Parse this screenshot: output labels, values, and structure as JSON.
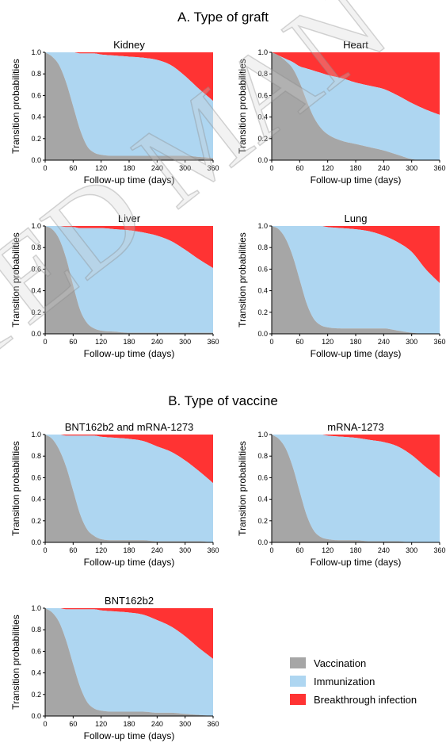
{
  "sections": {
    "a_title": "A. Type of graft",
    "b_title": "B. Type of vaccine"
  },
  "watermark": {
    "text": "ACCEPTED MANUSCRIPT",
    "visible_fragment": "TED MAN"
  },
  "colors": {
    "vaccination": "#a6a6a6",
    "immunization": "#aed6f1",
    "breakthrough": "#ff3333",
    "watermark": "#d0d0d0"
  },
  "legend": {
    "items": [
      {
        "label": "Vaccination",
        "color": "#a6a6a6"
      },
      {
        "label": "Immunization",
        "color": "#aed6f1"
      },
      {
        "label": "Breakthrough infection",
        "color": "#ff3333"
      }
    ]
  },
  "chart_data": [
    {
      "type": "area",
      "title": "Kidney",
      "xlabel": "Follow-up time (days)",
      "ylabel": "Transition probabilities",
      "xlim": [
        0,
        360
      ],
      "ylim": [
        0,
        1
      ],
      "xticks": [
        0,
        60,
        120,
        180,
        240,
        300,
        360
      ],
      "yticks": [
        0.0,
        0.2,
        0.4,
        0.6,
        0.8,
        1.0
      ],
      "x": [
        0,
        15,
        30,
        45,
        60,
        75,
        90,
        105,
        120,
        150,
        180,
        210,
        240,
        270,
        300,
        330,
        360
      ],
      "series": [
        {
          "name": "Vaccination",
          "values": [
            1.0,
            0.96,
            0.88,
            0.72,
            0.5,
            0.28,
            0.13,
            0.07,
            0.05,
            0.04,
            0.04,
            0.04,
            0.04,
            0.04,
            0.04,
            0.03,
            0.02
          ]
        },
        {
          "name": "Immunization",
          "values": [
            0.0,
            0.04,
            0.12,
            0.28,
            0.5,
            0.71,
            0.86,
            0.92,
            0.93,
            0.93,
            0.92,
            0.91,
            0.89,
            0.84,
            0.74,
            0.63,
            0.53
          ]
        },
        {
          "name": "Breakthrough infection",
          "values": [
            0.0,
            0.0,
            0.0,
            0.0,
            0.0,
            0.01,
            0.01,
            0.01,
            0.02,
            0.03,
            0.04,
            0.05,
            0.07,
            0.12,
            0.22,
            0.34,
            0.45
          ]
        }
      ]
    },
    {
      "type": "area",
      "title": "Heart",
      "xlabel": "Follow-up time (days)",
      "ylabel": "Transition probabilities",
      "xlim": [
        0,
        360
      ],
      "ylim": [
        0,
        1
      ],
      "xticks": [
        0,
        60,
        120,
        180,
        240,
        300,
        360
      ],
      "yticks": [
        0.0,
        0.2,
        0.4,
        0.6,
        0.8,
        1.0
      ],
      "x": [
        0,
        15,
        30,
        45,
        60,
        75,
        90,
        105,
        120,
        150,
        180,
        210,
        240,
        270,
        300,
        330,
        360
      ],
      "series": [
        {
          "name": "Vaccination",
          "values": [
            1.0,
            0.97,
            0.92,
            0.85,
            0.72,
            0.55,
            0.4,
            0.3,
            0.24,
            0.18,
            0.15,
            0.12,
            0.09,
            0.05,
            0.01,
            0.0,
            0.0
          ]
        },
        {
          "name": "Immunization",
          "values": [
            0.0,
            0.0,
            0.02,
            0.06,
            0.15,
            0.3,
            0.43,
            0.51,
            0.55,
            0.58,
            0.57,
            0.57,
            0.57,
            0.55,
            0.52,
            0.47,
            0.42
          ]
        },
        {
          "name": "Breakthrough infection",
          "values": [
            0.0,
            0.03,
            0.06,
            0.09,
            0.13,
            0.15,
            0.17,
            0.19,
            0.21,
            0.24,
            0.28,
            0.31,
            0.34,
            0.4,
            0.47,
            0.53,
            0.58
          ]
        }
      ]
    },
    {
      "type": "area",
      "title": "Liver",
      "xlabel": "Follow-up time (days)",
      "ylabel": "Transition probabilities",
      "xlim": [
        0,
        360
      ],
      "ylim": [
        0,
        1
      ],
      "xticks": [
        0,
        60,
        120,
        180,
        240,
        300,
        360
      ],
      "yticks": [
        0.0,
        0.2,
        0.4,
        0.6,
        0.8,
        1.0
      ],
      "x": [
        0,
        15,
        30,
        45,
        60,
        75,
        90,
        105,
        120,
        150,
        180,
        210,
        240,
        270,
        300,
        330,
        360
      ],
      "series": [
        {
          "name": "Vaccination",
          "values": [
            1.0,
            0.97,
            0.88,
            0.7,
            0.45,
            0.22,
            0.1,
            0.05,
            0.03,
            0.02,
            0.01,
            0.01,
            0.01,
            0.01,
            0.01,
            0.01,
            0.01
          ]
        },
        {
          "name": "Immunization",
          "values": [
            0.0,
            0.03,
            0.12,
            0.29,
            0.54,
            0.76,
            0.88,
            0.93,
            0.95,
            0.95,
            0.95,
            0.93,
            0.9,
            0.85,
            0.77,
            0.68,
            0.6
          ]
        },
        {
          "name": "Breakthrough infection",
          "values": [
            0.0,
            0.0,
            0.0,
            0.01,
            0.01,
            0.02,
            0.02,
            0.02,
            0.02,
            0.03,
            0.04,
            0.06,
            0.09,
            0.14,
            0.22,
            0.31,
            0.39
          ]
        }
      ]
    },
    {
      "type": "area",
      "title": "Lung",
      "xlabel": "Follow-up time (days)",
      "ylabel": "Transition probabilities",
      "xlim": [
        0,
        360
      ],
      "ylim": [
        0,
        1
      ],
      "xticks": [
        0,
        60,
        120,
        180,
        240,
        300,
        360
      ],
      "yticks": [
        0.0,
        0.2,
        0.4,
        0.6,
        0.8,
        1.0
      ],
      "x": [
        0,
        15,
        30,
        45,
        60,
        75,
        90,
        105,
        120,
        150,
        180,
        210,
        240,
        270,
        300,
        330,
        360
      ],
      "series": [
        {
          "name": "Vaccination",
          "values": [
            1.0,
            0.97,
            0.88,
            0.72,
            0.5,
            0.28,
            0.14,
            0.08,
            0.06,
            0.05,
            0.05,
            0.05,
            0.05,
            0.03,
            0.01,
            0.0,
            0.0
          ]
        },
        {
          "name": "Immunization",
          "values": [
            0.0,
            0.03,
            0.12,
            0.28,
            0.5,
            0.72,
            0.86,
            0.92,
            0.93,
            0.93,
            0.92,
            0.9,
            0.86,
            0.82,
            0.75,
            0.6,
            0.47
          ]
        },
        {
          "name": "Breakthrough infection",
          "values": [
            0.0,
            0.0,
            0.0,
            0.0,
            0.0,
            0.0,
            0.0,
            0.0,
            0.01,
            0.02,
            0.03,
            0.05,
            0.09,
            0.15,
            0.24,
            0.4,
            0.53
          ]
        }
      ]
    },
    {
      "type": "area",
      "title": "BNT162b2 and mRNA-1273",
      "xlabel": "Follow-up time (days)",
      "ylabel": "Transition probabilities",
      "xlim": [
        0,
        360
      ],
      "ylim": [
        0,
        1
      ],
      "xticks": [
        0,
        60,
        120,
        180,
        240,
        300,
        360
      ],
      "yticks": [
        0.0,
        0.2,
        0.4,
        0.6,
        0.8,
        1.0
      ],
      "x": [
        0,
        15,
        30,
        45,
        60,
        75,
        90,
        105,
        120,
        150,
        180,
        210,
        240,
        270,
        300,
        330,
        360
      ],
      "series": [
        {
          "name": "Vaccination",
          "values": [
            1.0,
            0.96,
            0.86,
            0.7,
            0.48,
            0.26,
            0.12,
            0.06,
            0.03,
            0.02,
            0.02,
            0.02,
            0.01,
            0.01,
            0.01,
            0.01,
            0.0
          ]
        },
        {
          "name": "Immunization",
          "values": [
            0.0,
            0.04,
            0.14,
            0.29,
            0.51,
            0.73,
            0.87,
            0.93,
            0.95,
            0.95,
            0.94,
            0.92,
            0.88,
            0.83,
            0.75,
            0.65,
            0.55
          ]
        },
        {
          "name": "Breakthrough infection",
          "values": [
            0.0,
            0.0,
            0.0,
            0.01,
            0.01,
            0.01,
            0.01,
            0.01,
            0.02,
            0.03,
            0.04,
            0.06,
            0.11,
            0.16,
            0.24,
            0.34,
            0.45
          ]
        }
      ]
    },
    {
      "type": "area",
      "title": "mRNA-1273",
      "xlabel": "Follow-up time (days)",
      "ylabel": "Transition probabilities",
      "xlim": [
        0,
        360
      ],
      "ylim": [
        0,
        1
      ],
      "xticks": [
        0,
        60,
        120,
        180,
        240,
        300,
        360
      ],
      "yticks": [
        0.0,
        0.2,
        0.4,
        0.6,
        0.8,
        1.0
      ],
      "x": [
        0,
        15,
        30,
        45,
        60,
        75,
        90,
        105,
        120,
        150,
        180,
        210,
        240,
        270,
        300,
        330,
        360
      ],
      "series": [
        {
          "name": "Vaccination",
          "values": [
            1.0,
            0.96,
            0.87,
            0.7,
            0.47,
            0.25,
            0.11,
            0.05,
            0.03,
            0.02,
            0.02,
            0.01,
            0.01,
            0.01,
            0.0,
            0.0,
            0.0
          ]
        },
        {
          "name": "Immunization",
          "values": [
            0.0,
            0.04,
            0.13,
            0.3,
            0.53,
            0.75,
            0.89,
            0.95,
            0.96,
            0.96,
            0.95,
            0.94,
            0.92,
            0.88,
            0.81,
            0.7,
            0.6
          ]
        },
        {
          "name": "Breakthrough infection",
          "values": [
            0.0,
            0.0,
            0.0,
            0.0,
            0.0,
            0.0,
            0.0,
            0.0,
            0.01,
            0.02,
            0.03,
            0.05,
            0.07,
            0.11,
            0.19,
            0.3,
            0.4
          ]
        }
      ]
    },
    {
      "type": "area",
      "title": "BNT162b2",
      "xlabel": "Follow-up time (days)",
      "ylabel": "Transition probabilities",
      "xlim": [
        0,
        360
      ],
      "ylim": [
        0,
        1
      ],
      "xticks": [
        0,
        60,
        120,
        180,
        240,
        300,
        360
      ],
      "yticks": [
        0.0,
        0.2,
        0.4,
        0.6,
        0.8,
        1.0
      ],
      "x": [
        0,
        15,
        30,
        45,
        60,
        75,
        90,
        105,
        120,
        150,
        180,
        210,
        240,
        270,
        300,
        330,
        360
      ],
      "series": [
        {
          "name": "Vaccination",
          "values": [
            1.0,
            0.96,
            0.87,
            0.7,
            0.48,
            0.27,
            0.13,
            0.07,
            0.05,
            0.04,
            0.04,
            0.04,
            0.03,
            0.03,
            0.02,
            0.01,
            0.0
          ]
        },
        {
          "name": "Immunization",
          "values": [
            0.0,
            0.04,
            0.13,
            0.29,
            0.51,
            0.72,
            0.86,
            0.92,
            0.93,
            0.93,
            0.92,
            0.9,
            0.86,
            0.8,
            0.72,
            0.62,
            0.53
          ]
        },
        {
          "name": "Breakthrough infection",
          "values": [
            0.0,
            0.0,
            0.0,
            0.01,
            0.01,
            0.01,
            0.01,
            0.01,
            0.02,
            0.03,
            0.04,
            0.06,
            0.11,
            0.17,
            0.26,
            0.37,
            0.47
          ]
        }
      ]
    }
  ]
}
